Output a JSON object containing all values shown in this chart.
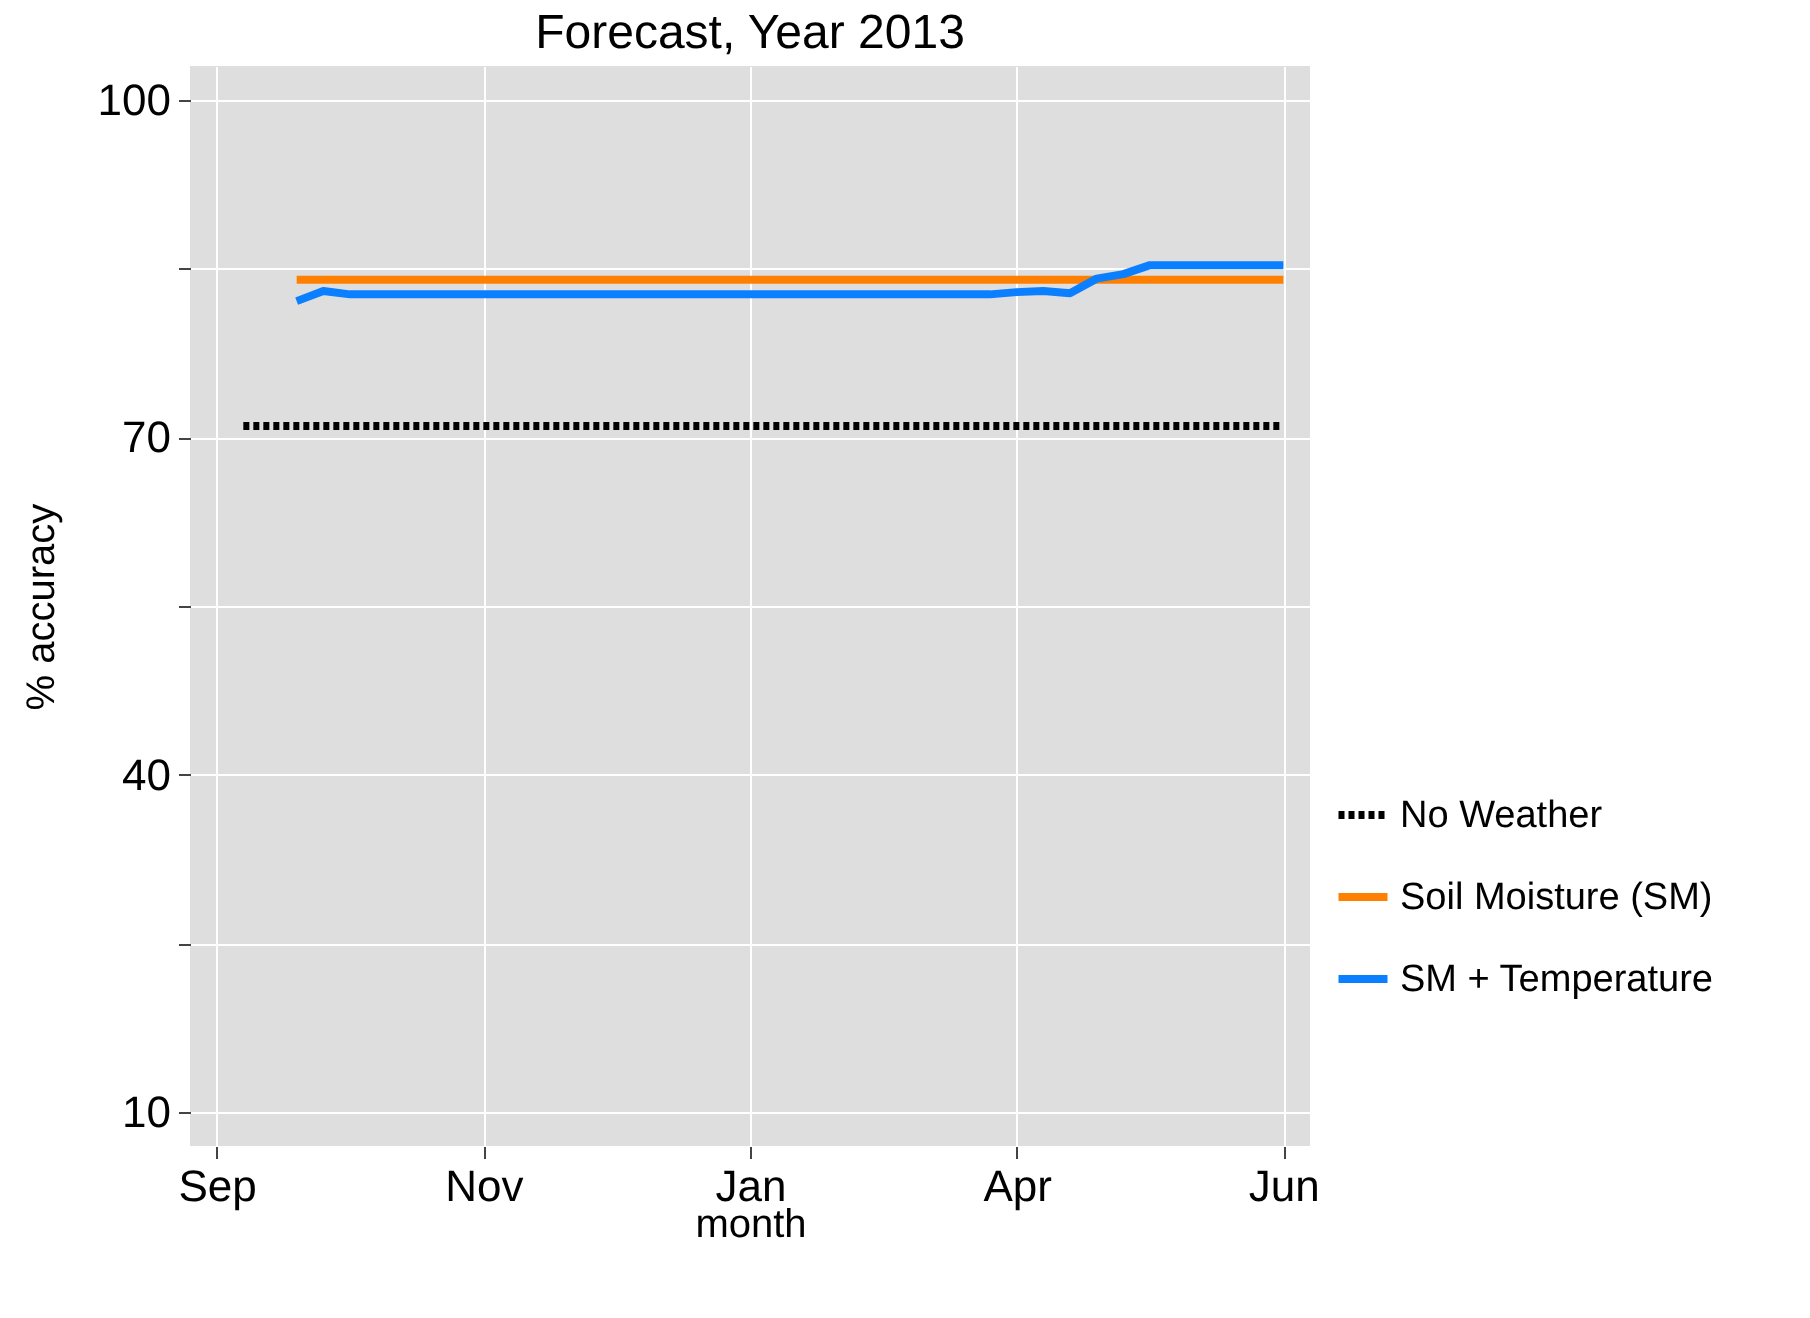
{
  "chart_data": {
    "type": "line",
    "title": "Forecast, Year 2013",
    "xlabel": "month",
    "ylabel": "% accuracy",
    "categories": [
      "Sep",
      null,
      null,
      null,
      null,
      null,
      null,
      null,
      null,
      null,
      "Nov",
      null,
      null,
      null,
      null,
      null,
      null,
      null,
      null,
      null,
      "Jan",
      null,
      null,
      null,
      null,
      null,
      null,
      null,
      null,
      null,
      "Apr",
      null,
      null,
      null,
      null,
      null,
      null,
      null,
      null,
      null,
      "Jun"
    ],
    "ylim": [
      7,
      103
    ],
    "yticks": [
      10,
      {
        "value": 25,
        "label": null
      },
      40,
      {
        "value": 55,
        "label": null
      },
      70,
      {
        "value": 85,
        "label": null
      },
      100
    ],
    "grid": true,
    "legend": "bottom right",
    "marker": "none",
    "series": [
      {
        "name": "No Weather",
        "color": "#000000",
        "line_style": "dotted",
        "values": [
          null,
          71,
          71,
          71,
          71,
          71,
          71,
          71,
          71,
          71,
          71,
          71,
          71,
          71,
          71,
          71,
          71,
          71,
          71,
          71,
          71,
          71,
          71,
          71,
          71,
          71,
          71,
          71,
          71,
          71,
          71,
          71,
          71,
          71,
          71,
          71,
          71,
          71,
          71,
          71,
          71
        ]
      },
      {
        "name": "Soil Moisture (SM)",
        "color": "#ff7f00",
        "line_style": "solid",
        "values": [
          null,
          null,
          null,
          84,
          84,
          84,
          84,
          84,
          84,
          84,
          84,
          84,
          84,
          84,
          84,
          84,
          84,
          84,
          84,
          84,
          84,
          84,
          84,
          84,
          84,
          84,
          84,
          84,
          84,
          84,
          84,
          84,
          84,
          84,
          84,
          84,
          84,
          84,
          84,
          84,
          84
        ]
      },
      {
        "name": "SM + Temperature",
        "color": "#0a7fff",
        "line_style": "solid",
        "values": [
          null,
          null,
          null,
          82.1,
          83.0,
          82.7,
          82.7,
          82.7,
          82.7,
          82.7,
          82.7,
          82.7,
          82.7,
          82.7,
          82.7,
          82.7,
          82.7,
          82.7,
          82.7,
          82.7,
          82.7,
          82.7,
          82.7,
          82.7,
          82.7,
          82.7,
          82.7,
          82.7,
          82.7,
          82.7,
          82.9,
          83.0,
          82.8,
          84.1,
          84.5,
          85.3,
          85.3,
          85.3,
          85.3,
          85.3,
          85.3
        ]
      }
    ]
  }
}
